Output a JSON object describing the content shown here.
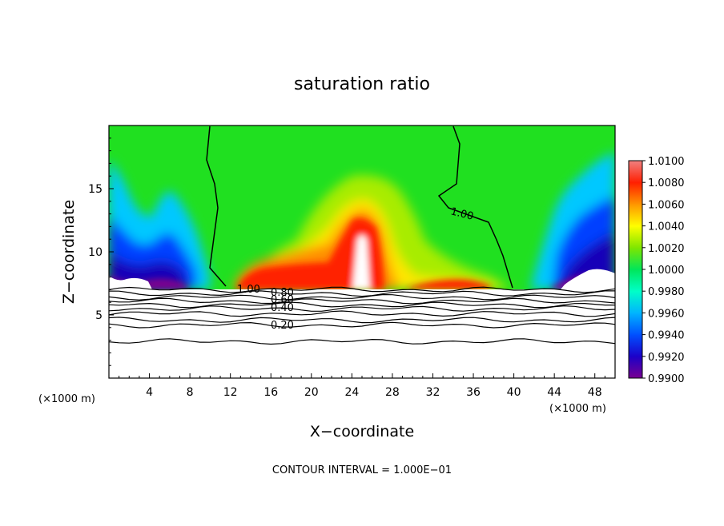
{
  "chart_data": {
    "type": "heatmap",
    "title": "saturation ratio",
    "xlabel": "X−coordinate",
    "ylabel": "Z−coordinate",
    "x_unit": "(×1000 m)",
    "z_unit": "(×1000 m)",
    "xlim": [
      0,
      50
    ],
    "ylim": [
      0,
      20
    ],
    "x_ticks": [
      4,
      8,
      12,
      16,
      20,
      24,
      28,
      32,
      36,
      40,
      44,
      48
    ],
    "y_ticks": [
      5,
      10,
      15
    ],
    "colorbar": {
      "range": [
        0.99,
        1.01
      ],
      "tick_labels": [
        "1.0100",
        "1.0080",
        "1.0060",
        "1.0040",
        "1.0020",
        "1.0000",
        "0.9980",
        "0.9960",
        "0.9940",
        "0.9920",
        "0.9900"
      ]
    },
    "contour_interval_text": "CONTOUR INTERVAL = 1.000E−01",
    "contour_labels": [
      "1.00",
      "0.80",
      "0.60",
      "0.40",
      "0.20"
    ],
    "field_notes": {
      "saturated_top_region": "z from about 7 to 20: saturation ratio near 1.00 (green) across the middle, drier blue/purple bands near x 0–8 and 42–50 around z 8–15",
      "peak_region": "x about 20–26, z about 8–15: values above 1.006 (red), with a white core above 1.01 near x 24–25, z 8–11",
      "low_band": "z below about 7: many horizontal contour lines from 1.00 down to about 0.20 near z 3"
    },
    "colors": {
      "scale": [
        "#7a0090",
        "#1c00c8",
        "#0050ff",
        "#00b4ff",
        "#00ffc8",
        "#00e65a",
        "#7ee600",
        "#ffff00",
        "#ff9600",
        "#ff1e00",
        "#f08080"
      ],
      "above_max": "#ffffff",
      "background": "#ffffff"
    }
  }
}
